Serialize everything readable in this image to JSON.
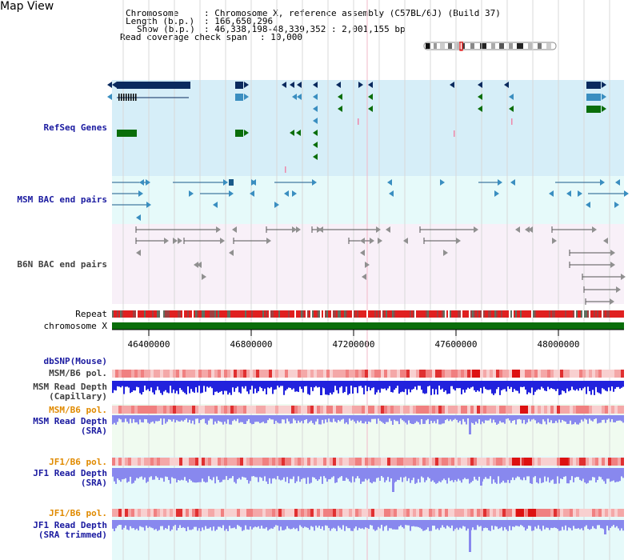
{
  "page": {
    "title": "Map View"
  },
  "header": {
    "chromosome_key": "Chromosome",
    "chromosome_val": ": Chromosome X, reference assembly (C57BL/6J) (Build 37)",
    "length_key": "Length (b.p.)",
    "length_val": ": 166,650,296",
    "show_key": "Show (b.p.)",
    "show_val": ": 46,338,198-48,339,352 : 2,001,155 bp",
    "span_key": "Read coverage check span",
    "span_val": ": 10,000"
  },
  "tracks": {
    "refseq": "RefSeq Genes",
    "msm_bac": "MSM BAC end pairs",
    "b6n_bac": "B6N BAC end pairs",
    "repeat": "Repeat",
    "chrom": "chromosome X",
    "dbsnp": "dbSNP(Mouse)",
    "msm_pol": "MSM/B6 pol.",
    "msm_depth_cap": "MSM Read Depth\n(Capillary)",
    "msm_pol2": "MSM/B6 pol.",
    "msm_depth_sra": "MSM Read Depth\n(SRA)",
    "jf1_pol": "JF1/B6 pol.",
    "jf1_depth_sra": "JF1 Read Depth\n(SRA)",
    "jf1_pol2": "JF1/B6 pol.",
    "jf1_depth_trim": "JF1 Read Depth\n(SRA trimmed)"
  },
  "axis": {
    "ticks": [
      "46400000",
      "46800000",
      "47200000",
      "47600000",
      "48000000"
    ]
  },
  "colors": {
    "refseq_bg": "#d6eef8",
    "msm_bg": "#e6fafa",
    "b6n_bg": "#f8f0f8",
    "gene_dark": "#0a2a5e",
    "gene_mid": "#3a8ec0",
    "gene_green": "#0a6e0a",
    "chrom_green": "#0a6e0a",
    "depth_blue": "#2222dd",
    "depth_light": "#8888ee"
  }
}
